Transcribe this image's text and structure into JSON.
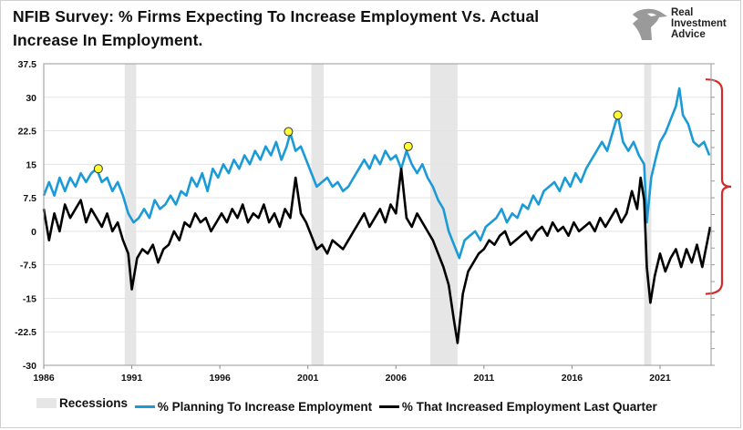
{
  "title_line1": "NFIB Survey:  % Firms Expecting To Increase Employment Vs. Actual",
  "title_line2": "Increase In Employment.",
  "logo": {
    "line1": "Real",
    "line2": "Investment",
    "line3": "Advice",
    "icon": "eagle-head-icon"
  },
  "colors": {
    "planning": "#1a9ad6",
    "actual": "#000000",
    "recession": "#e6e6e6",
    "marker": "#ffff33",
    "bracket": "#d62a2a"
  },
  "chart_data": {
    "type": "line",
    "title": "NFIB Survey:  % Firms Expecting To Increase Employment Vs. Actual Increase In Employment.",
    "xlabel": "",
    "ylabel": "",
    "xlim": [
      1986,
      2023.9
    ],
    "ylim": [
      -30,
      37.5
    ],
    "x_ticks": [
      1986,
      1991,
      1996,
      2001,
      2006,
      2011,
      2016,
      2021
    ],
    "y_ticks": [
      37.5,
      30,
      22.5,
      15,
      7.5,
      0,
      -7.5,
      -15,
      -22.5,
      -30
    ],
    "y_tick_labels": [
      "37.5",
      "30",
      "22.5",
      "15",
      "7.5",
      "0",
      "-7.5",
      "-15",
      "-22.5",
      "-30"
    ],
    "legend": [
      "Recessions",
      "% Planning To Increase Employment",
      "% That Increased Employment Last Quarter"
    ],
    "legend_position": "bottom",
    "recessions": [
      [
        1990.6,
        1991.25
      ],
      [
        2001.2,
        2001.9
      ],
      [
        2007.95,
        2009.5
      ],
      [
        2020.1,
        2020.5
      ]
    ],
    "peak_markers": [
      {
        "x": 1989.1,
        "y": 14
      },
      {
        "x": 1999.9,
        "y": 22.3
      },
      {
        "x": 2006.7,
        "y": 19
      },
      {
        "x": 2018.6,
        "y": 26
      }
    ],
    "annotation_bracket": {
      "from": 34,
      "to": -14
    },
    "series": [
      {
        "name": "% Planning To Increase Employment",
        "points": [
          [
            1986,
            8
          ],
          [
            1986.3,
            11
          ],
          [
            1986.6,
            8
          ],
          [
            1986.9,
            12
          ],
          [
            1987.2,
            9
          ],
          [
            1987.5,
            12
          ],
          [
            1987.8,
            10
          ],
          [
            1988.1,
            13
          ],
          [
            1988.4,
            11
          ],
          [
            1988.7,
            13
          ],
          [
            1989.0,
            14
          ],
          [
            1989.3,
            11
          ],
          [
            1989.6,
            12
          ],
          [
            1989.9,
            9
          ],
          [
            1990.2,
            11
          ],
          [
            1990.5,
            8
          ],
          [
            1990.8,
            4
          ],
          [
            1991.1,
            2
          ],
          [
            1991.4,
            3
          ],
          [
            1991.7,
            5
          ],
          [
            1992.0,
            3
          ],
          [
            1992.3,
            7
          ],
          [
            1992.6,
            5
          ],
          [
            1992.9,
            6
          ],
          [
            1993.2,
            8
          ],
          [
            1993.5,
            6
          ],
          [
            1993.8,
            9
          ],
          [
            1994.1,
            8
          ],
          [
            1994.4,
            12
          ],
          [
            1994.7,
            10
          ],
          [
            1995.0,
            13
          ],
          [
            1995.3,
            9
          ],
          [
            1995.6,
            14
          ],
          [
            1995.9,
            12
          ],
          [
            1996.2,
            15
          ],
          [
            1996.5,
            13
          ],
          [
            1996.8,
            16
          ],
          [
            1997.1,
            14
          ],
          [
            1997.4,
            17
          ],
          [
            1997.7,
            15
          ],
          [
            1998.0,
            18
          ],
          [
            1998.3,
            16
          ],
          [
            1998.6,
            19
          ],
          [
            1998.9,
            17
          ],
          [
            1999.2,
            20
          ],
          [
            1999.5,
            16
          ],
          [
            1999.8,
            19
          ],
          [
            2000.0,
            22
          ],
          [
            2000.3,
            18
          ],
          [
            2000.6,
            19
          ],
          [
            2000.9,
            16
          ],
          [
            2001.2,
            13
          ],
          [
            2001.5,
            10
          ],
          [
            2001.8,
            11
          ],
          [
            2002.1,
            12
          ],
          [
            2002.4,
            10
          ],
          [
            2002.7,
            11
          ],
          [
            2003.0,
            9
          ],
          [
            2003.3,
            10
          ],
          [
            2003.6,
            12
          ],
          [
            2003.9,
            14
          ],
          [
            2004.2,
            16
          ],
          [
            2004.5,
            14
          ],
          [
            2004.8,
            17
          ],
          [
            2005.1,
            15
          ],
          [
            2005.4,
            18
          ],
          [
            2005.7,
            16
          ],
          [
            2006.0,
            17
          ],
          [
            2006.3,
            14
          ],
          [
            2006.6,
            18
          ],
          [
            2006.9,
            15
          ],
          [
            2007.2,
            13
          ],
          [
            2007.5,
            15
          ],
          [
            2007.8,
            12
          ],
          [
            2008.1,
            10
          ],
          [
            2008.4,
            7
          ],
          [
            2008.7,
            5
          ],
          [
            2009.0,
            0
          ],
          [
            2009.3,
            -3
          ],
          [
            2009.6,
            -6
          ],
          [
            2009.9,
            -2
          ],
          [
            2010.2,
            -1
          ],
          [
            2010.5,
            0
          ],
          [
            2010.8,
            -2
          ],
          [
            2011.1,
            1
          ],
          [
            2011.4,
            2
          ],
          [
            2011.7,
            3
          ],
          [
            2012.0,
            5
          ],
          [
            2012.3,
            2
          ],
          [
            2012.6,
            4
          ],
          [
            2012.9,
            3
          ],
          [
            2013.2,
            6
          ],
          [
            2013.5,
            5
          ],
          [
            2013.8,
            8
          ],
          [
            2014.1,
            6
          ],
          [
            2014.4,
            9
          ],
          [
            2014.7,
            10
          ],
          [
            2015.0,
            11
          ],
          [
            2015.3,
            9
          ],
          [
            2015.6,
            12
          ],
          [
            2015.9,
            10
          ],
          [
            2016.2,
            13
          ],
          [
            2016.5,
            11
          ],
          [
            2016.8,
            14
          ],
          [
            2017.1,
            16
          ],
          [
            2017.4,
            18
          ],
          [
            2017.7,
            20
          ],
          [
            2018.0,
            18
          ],
          [
            2018.3,
            22
          ],
          [
            2018.6,
            26
          ],
          [
            2018.9,
            20
          ],
          [
            2019.2,
            18
          ],
          [
            2019.5,
            20
          ],
          [
            2019.8,
            17
          ],
          [
            2020.1,
            15
          ],
          [
            2020.25,
            2
          ],
          [
            2020.5,
            12
          ],
          [
            2020.8,
            17
          ],
          [
            2021.0,
            20
          ],
          [
            2021.3,
            22
          ],
          [
            2021.6,
            25
          ],
          [
            2021.9,
            28
          ],
          [
            2022.1,
            32
          ],
          [
            2022.3,
            26
          ],
          [
            2022.6,
            24
          ],
          [
            2022.9,
            20
          ],
          [
            2023.2,
            19
          ],
          [
            2023.5,
            20
          ],
          [
            2023.8,
            17
          ]
        ]
      },
      {
        "name": "% That Increased Employment Last Quarter",
        "points": [
          [
            1986,
            5
          ],
          [
            1986.3,
            -2
          ],
          [
            1986.6,
            4
          ],
          [
            1986.9,
            0
          ],
          [
            1987.2,
            6
          ],
          [
            1987.5,
            3
          ],
          [
            1987.8,
            5
          ],
          [
            1988.1,
            7
          ],
          [
            1988.4,
            2
          ],
          [
            1988.7,
            5
          ],
          [
            1989.0,
            3
          ],
          [
            1989.3,
            1
          ],
          [
            1989.6,
            4
          ],
          [
            1989.9,
            0
          ],
          [
            1990.2,
            2
          ],
          [
            1990.5,
            -2
          ],
          [
            1990.8,
            -5
          ],
          [
            1991.0,
            -13
          ],
          [
            1991.3,
            -6
          ],
          [
            1991.6,
            -4
          ],
          [
            1991.9,
            -5
          ],
          [
            1992.2,
            -3
          ],
          [
            1992.5,
            -7
          ],
          [
            1992.8,
            -4
          ],
          [
            1993.1,
            -3
          ],
          [
            1993.4,
            0
          ],
          [
            1993.7,
            -2
          ],
          [
            1994.0,
            2
          ],
          [
            1994.3,
            1
          ],
          [
            1994.6,
            4
          ],
          [
            1994.9,
            2
          ],
          [
            1995.2,
            3
          ],
          [
            1995.5,
            0
          ],
          [
            1995.8,
            2
          ],
          [
            1996.1,
            4
          ],
          [
            1996.4,
            2
          ],
          [
            1996.7,
            5
          ],
          [
            1997.0,
            3
          ],
          [
            1997.3,
            6
          ],
          [
            1997.6,
            2
          ],
          [
            1997.9,
            4
          ],
          [
            1998.2,
            3
          ],
          [
            1998.5,
            6
          ],
          [
            1998.8,
            2
          ],
          [
            1999.1,
            4
          ],
          [
            1999.4,
            1
          ],
          [
            1999.7,
            5
          ],
          [
            2000.0,
            3
          ],
          [
            2000.3,
            12
          ],
          [
            2000.6,
            4
          ],
          [
            2000.9,
            2
          ],
          [
            2001.2,
            -1
          ],
          [
            2001.5,
            -4
          ],
          [
            2001.8,
            -3
          ],
          [
            2002.1,
            -5
          ],
          [
            2002.4,
            -2
          ],
          [
            2002.7,
            -3
          ],
          [
            2003.0,
            -4
          ],
          [
            2003.3,
            -2
          ],
          [
            2003.6,
            0
          ],
          [
            2003.9,
            2
          ],
          [
            2004.2,
            4
          ],
          [
            2004.5,
            1
          ],
          [
            2004.8,
            3
          ],
          [
            2005.1,
            5
          ],
          [
            2005.4,
            2
          ],
          [
            2005.7,
            6
          ],
          [
            2006.0,
            4
          ],
          [
            2006.3,
            14
          ],
          [
            2006.6,
            3
          ],
          [
            2006.9,
            1
          ],
          [
            2007.2,
            4
          ],
          [
            2007.5,
            2
          ],
          [
            2007.8,
            0
          ],
          [
            2008.1,
            -2
          ],
          [
            2008.4,
            -5
          ],
          [
            2008.7,
            -8
          ],
          [
            2009.0,
            -12
          ],
          [
            2009.3,
            -20
          ],
          [
            2009.5,
            -25
          ],
          [
            2009.8,
            -14
          ],
          [
            2010.1,
            -9
          ],
          [
            2010.4,
            -7
          ],
          [
            2010.7,
            -5
          ],
          [
            2011.0,
            -4
          ],
          [
            2011.3,
            -2
          ],
          [
            2011.6,
            -3
          ],
          [
            2011.9,
            -1
          ],
          [
            2012.2,
            0
          ],
          [
            2012.5,
            -3
          ],
          [
            2012.8,
            -2
          ],
          [
            2013.1,
            -1
          ],
          [
            2013.4,
            0
          ],
          [
            2013.7,
            -2
          ],
          [
            2014.0,
            0
          ],
          [
            2014.3,
            1
          ],
          [
            2014.6,
            -1
          ],
          [
            2014.9,
            2
          ],
          [
            2015.2,
            0
          ],
          [
            2015.5,
            1
          ],
          [
            2015.8,
            -1
          ],
          [
            2016.1,
            2
          ],
          [
            2016.4,
            0
          ],
          [
            2016.7,
            1
          ],
          [
            2017.0,
            2
          ],
          [
            2017.3,
            0
          ],
          [
            2017.6,
            3
          ],
          [
            2017.9,
            1
          ],
          [
            2018.2,
            3
          ],
          [
            2018.5,
            5
          ],
          [
            2018.8,
            2
          ],
          [
            2019.1,
            4
          ],
          [
            2019.4,
            9
          ],
          [
            2019.7,
            5
          ],
          [
            2019.9,
            12
          ],
          [
            2020.1,
            7
          ],
          [
            2020.25,
            -8
          ],
          [
            2020.45,
            -16
          ],
          [
            2020.7,
            -10
          ],
          [
            2021.0,
            -5
          ],
          [
            2021.3,
            -9
          ],
          [
            2021.6,
            -6
          ],
          [
            2021.9,
            -4
          ],
          [
            2022.2,
            -8
          ],
          [
            2022.5,
            -4
          ],
          [
            2022.8,
            -7
          ],
          [
            2023.1,
            -3
          ],
          [
            2023.4,
            -8
          ],
          [
            2023.7,
            -2
          ],
          [
            2023.85,
            1
          ]
        ]
      }
    ]
  }
}
